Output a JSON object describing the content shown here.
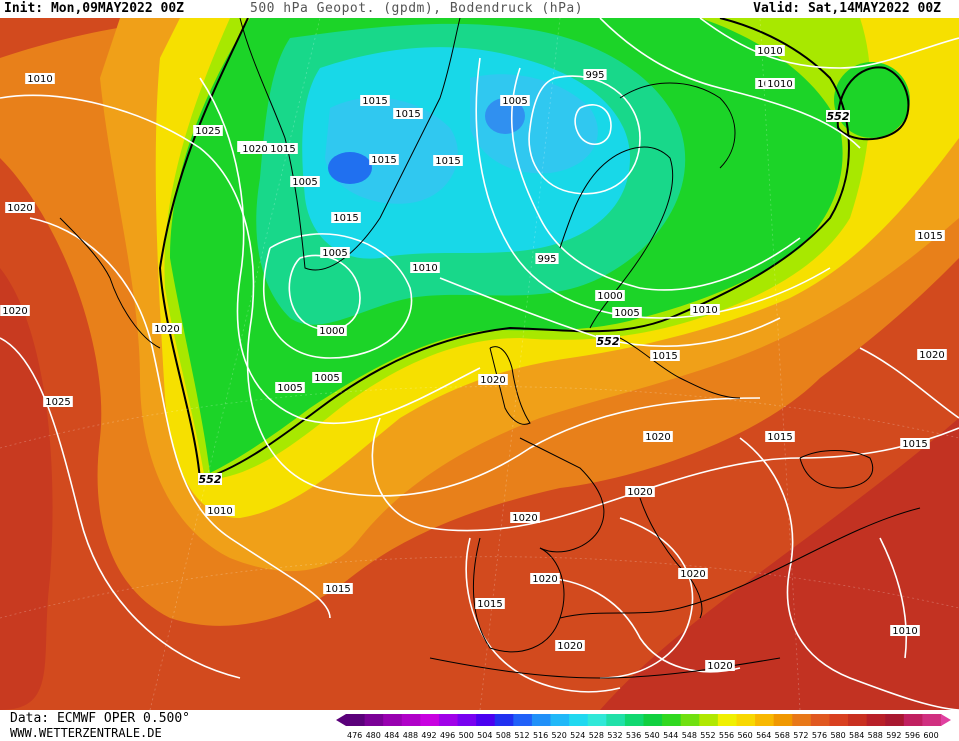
{
  "header": {
    "init": "Init: Mon,09MAY2022 00Z",
    "title": "500 hPa Geopot. (gpdm), Bodendruck (hPa)",
    "valid": "Valid: Sat,14MAY2022 00Z"
  },
  "footer": {
    "data_source": "Data: ECMWF OPER 0.500°",
    "website": "WWW.WETTERZENTRALE.DE"
  },
  "legend": {
    "levels": [
      "476",
      "480",
      "484",
      "488",
      "492",
      "496",
      "500",
      "504",
      "508",
      "512",
      "516",
      "520",
      "524",
      "528",
      "532",
      "536",
      "540",
      "544",
      "548",
      "552",
      "556",
      "560",
      "564",
      "568",
      "572",
      "576",
      "580",
      "584",
      "588",
      "592",
      "596",
      "600"
    ],
    "colors": [
      "#5a007a",
      "#7a0096",
      "#9800b0",
      "#b000c8",
      "#c800e0",
      "#a000e8",
      "#7800f0",
      "#4a00f0",
      "#2030f0",
      "#2060f8",
      "#2090f8",
      "#20b8f8",
      "#20d8f0",
      "#30e8d8",
      "#20e0a8",
      "#10d870",
      "#10d040",
      "#30d820",
      "#70e010",
      "#b0e800",
      "#f0f000",
      "#f8d800",
      "#f8b800",
      "#f09800",
      "#e87818",
      "#e05820",
      "#d84020",
      "#c83020",
      "#b82028",
      "#a81830",
      "#c02060",
      "#d03080"
    ]
  },
  "map": {
    "colors": {
      "high_core": "#c83a20",
      "high_edge": "#d84f1e",
      "orange": "#e8801a",
      "orange_light": "#f0a018",
      "yellow": "#f6e000",
      "yellow_green": "#a8e800",
      "green": "#20d820",
      "green_cyan": "#18d8a0",
      "cyan": "#18d8e8",
      "blue": "#2070f0",
      "isobar": "#ffffff",
      "coast": "#000000"
    },
    "isobar_labels": [
      "1010",
      "1025",
      "1020",
      "1015",
      "1015",
      "1015",
      "1005",
      "995",
      "1010",
      "1005",
      "1015",
      "1015",
      "1010",
      "1015",
      "1005",
      "1000",
      "995",
      "1010",
      "1000",
      "1005",
      "1010",
      "1020",
      "1020",
      "1025",
      "1020",
      "1005",
      "1005",
      "1015",
      "1020",
      "1020",
      "1015",
      "1020",
      "1015",
      "1020",
      "1010",
      "1020",
      "1015",
      "1020",
      "1015",
      "1020",
      "1020",
      "1010",
      "1015",
      "1020",
      "1020",
      "1010"
    ],
    "geopot_labels": [
      "552",
      "552",
      "552"
    ]
  }
}
